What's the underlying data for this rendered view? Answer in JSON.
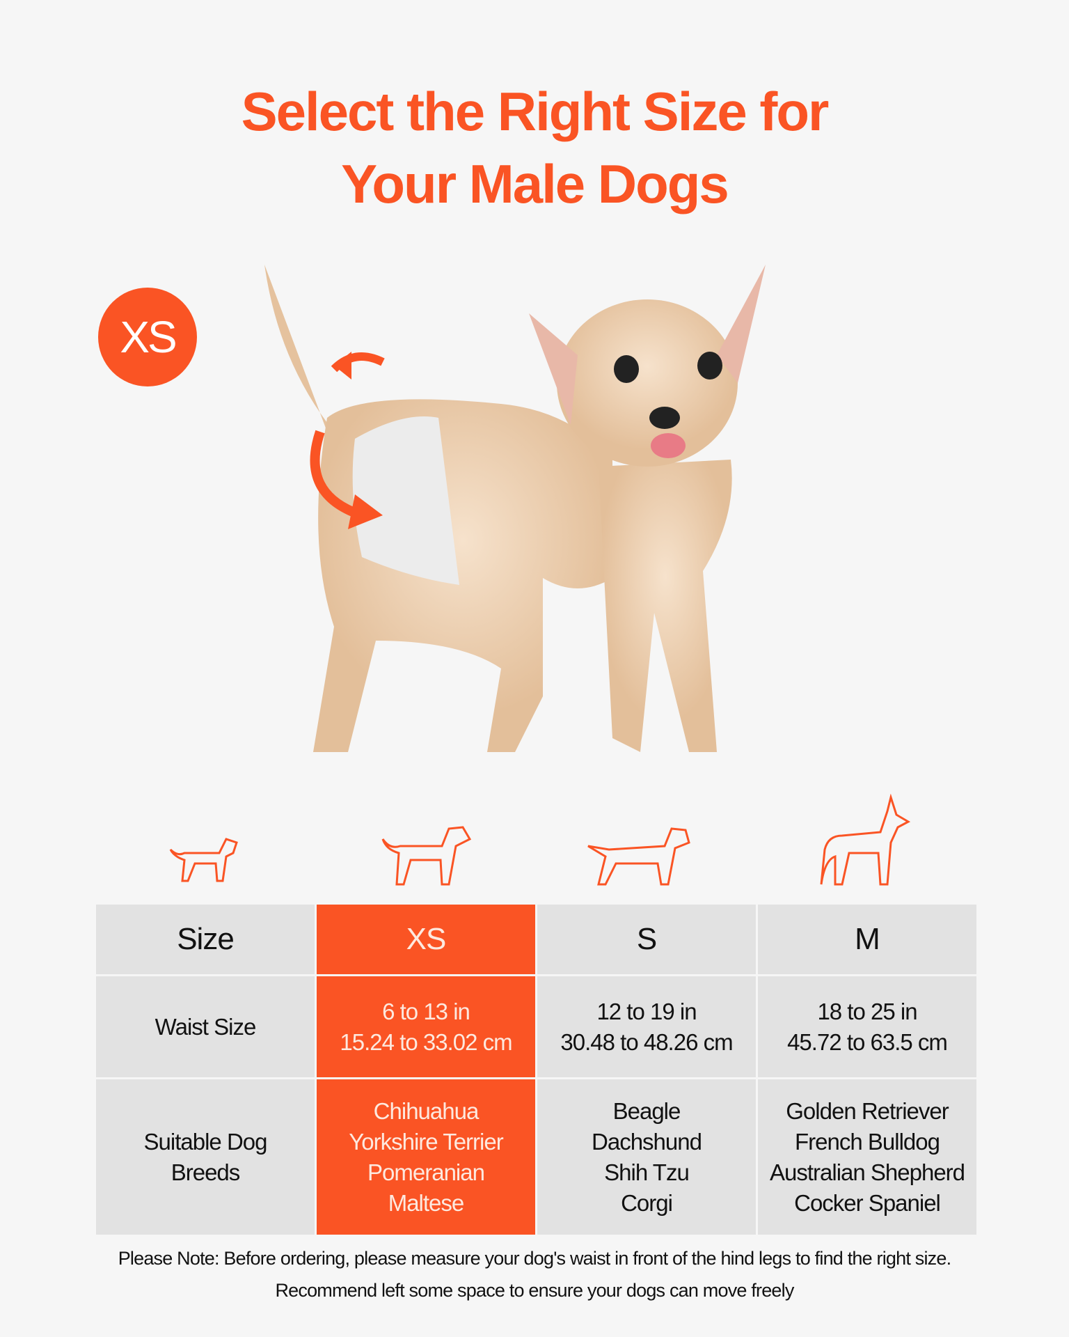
{
  "title": {
    "line1": "Select the Right Size for",
    "line2": "Your Male Dogs"
  },
  "badge": "XS",
  "colors": {
    "accent": "#fa5424",
    "background": "#f6f6f6",
    "cell": "#e2e2e2"
  },
  "icons": [
    "small-dog-icon",
    "medium-dog-icon",
    "long-dog-icon",
    "large-dog-icon"
  ],
  "table": {
    "header": [
      "Size",
      "XS",
      "S",
      "M"
    ],
    "waist": {
      "label": "Waist Size",
      "values": [
        [
          "6 to 13 in",
          "15.24 to 33.02 cm"
        ],
        [
          "12 to 19 in",
          "30.48 to 48.26 cm"
        ],
        [
          "18 to 25 in",
          "45.72 to 63.5 cm"
        ]
      ]
    },
    "breeds": {
      "label": [
        "Suitable Dog",
        "Breeds"
      ],
      "values": [
        [
          "Chihuahua",
          "Yorkshire Terrier",
          "Pomeranian",
          "Maltese"
        ],
        [
          "Beagle",
          "Dachshund",
          "Shih Tzu",
          "Corgi"
        ],
        [
          "Golden Retriever",
          "French Bulldog",
          "Australian Shepherd",
          "Cocker Spaniel"
        ]
      ]
    }
  },
  "note": {
    "line1": "Please Note: Before ordering, please measure your dog's waist in front of the hind legs to find the right size.",
    "line2": "Recommend left some space to ensure your dogs can move freely"
  }
}
